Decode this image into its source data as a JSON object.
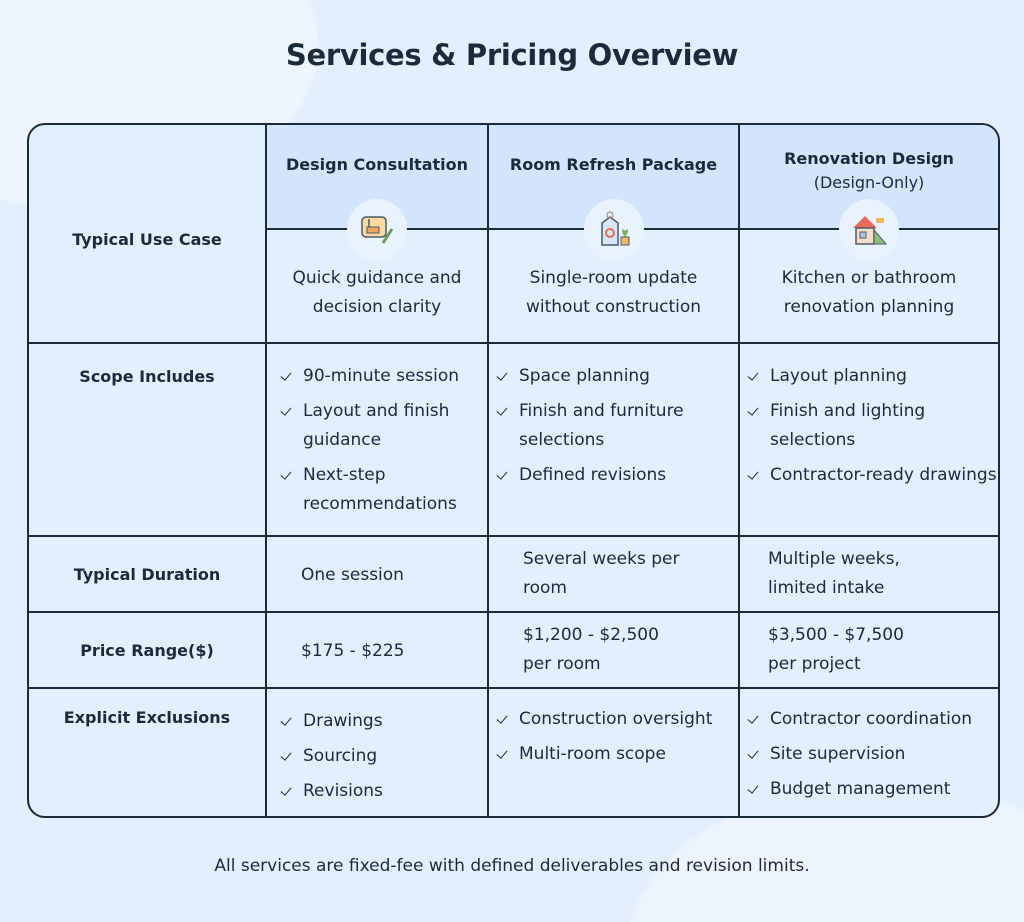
{
  "title": "Services & Pricing Overview",
  "columns": [
    {
      "name": "Design Consultation",
      "sub": "",
      "icon": "design-sketch-icon"
    },
    {
      "name": "Room Refresh Package",
      "sub": "",
      "icon": "price-tag-plant-icon"
    },
    {
      "name": "Renovation Design",
      "sub": "(Design-Only)",
      "icon": "house-tools-icon"
    }
  ],
  "rows": {
    "use_case": {
      "label": "Typical Use Case",
      "values": [
        "Quick guidance and decision clarity",
        "Single-room update without construction",
        "Kitchen or bathroom renovation planning"
      ]
    },
    "scope": {
      "label": "Scope Includes",
      "values": [
        [
          "90-minute session",
          "Layout and finish guidance",
          "Next-step recommendations"
        ],
        [
          "Space planning",
          "Finish and furniture selections",
          "Defined revisions"
        ],
        [
          "Layout planning",
          "Finish and lighting selections",
          "Contractor-ready drawings"
        ]
      ]
    },
    "duration": {
      "label": "Typical Duration",
      "values": [
        "One session",
        "Several weeks per room",
        "Multiple weeks, limited intake"
      ]
    },
    "price": {
      "label": "Price Range($)",
      "values": [
        "$175 - $225",
        "$1,200 - $2,500 per room",
        "$3,500 - $7,500 per project"
      ]
    },
    "exclusions": {
      "label": "Explicit Exclusions",
      "values": [
        [
          "Drawings",
          "Sourcing",
          "Revisions"
        ],
        [
          "Construction oversight",
          "Multi-room scope"
        ],
        [
          "Contractor coordination",
          "Site supervision",
          "Budget management"
        ]
      ]
    }
  },
  "footer": "All services are fixed-fee with defined deliverables and revision limits.",
  "colors": {
    "header_bg": "#d3e5fc",
    "cell_bg": "#e2effd",
    "border": "#1c2b3a"
  }
}
